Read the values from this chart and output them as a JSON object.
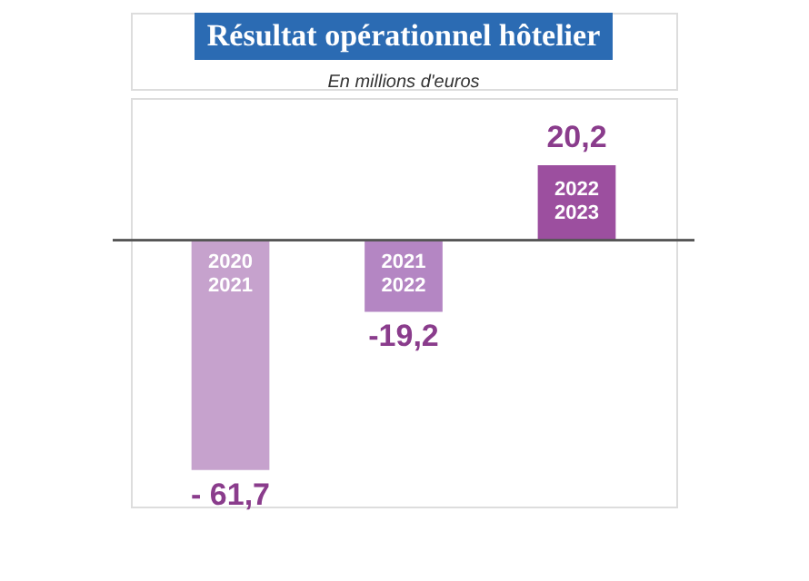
{
  "chart_data": {
    "type": "bar",
    "title": "Résultat opérationnel hôtelier",
    "subtitle": "En millions d'euros",
    "categories": [
      "2020\n2021",
      "2021\n2022",
      "2022\n2023"
    ],
    "values": [
      -61.7,
      -19.2,
      20.2
    ],
    "colors": [
      "#c6a2cd",
      "#b486c3",
      "#9c4f9f"
    ],
    "value_labels": [
      "- 61,7",
      "-19,2",
      "20,2"
    ],
    "grid": false
  }
}
